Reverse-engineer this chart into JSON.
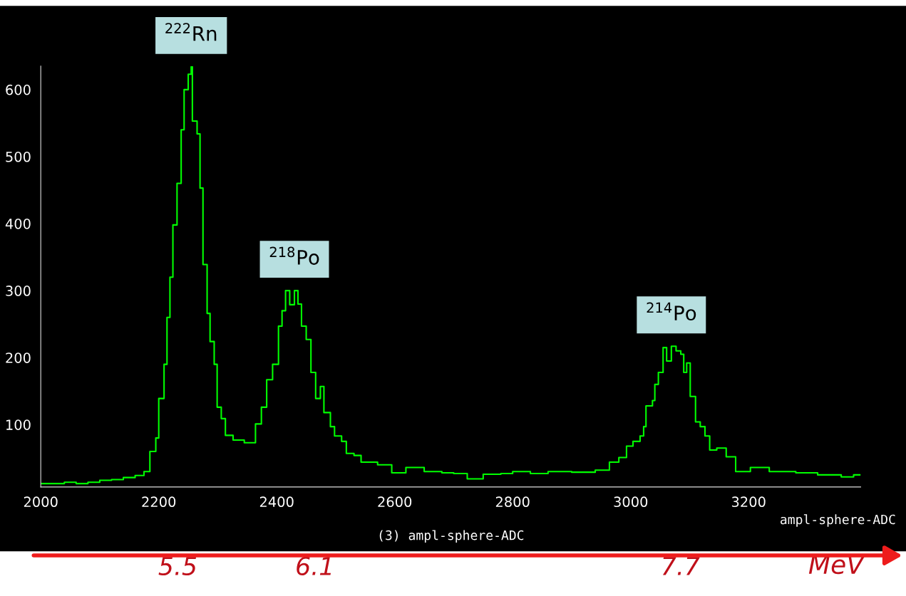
{
  "chart_data": {
    "type": "step",
    "title": "(3) ampl-sphere-ADC",
    "xlabel": "ampl-sphere-ADC",
    "x2label": "MeV",
    "x": [
      2000,
      2020,
      2040,
      2060,
      2080,
      2100,
      2120,
      2140,
      2160,
      2175,
      2185,
      2195,
      2200,
      2209,
      2214,
      2219,
      2224,
      2231,
      2238,
      2243,
      2250,
      2255,
      2257,
      2265,
      2270,
      2275,
      2282,
      2287,
      2294,
      2299,
      2306,
      2313,
      2326,
      2345,
      2360,
      2364,
      2374,
      2383,
      2393,
      2403,
      2409,
      2415,
      2422,
      2430,
      2436,
      2442,
      2450,
      2458,
      2466,
      2474,
      2480,
      2491,
      2498,
      2510,
      2518,
      2531,
      2543,
      2571,
      2595,
      2619,
      2650,
      2680,
      2700,
      2723,
      2750,
      2780,
      2800,
      2830,
      2860,
      2900,
      2940,
      2964,
      2980,
      2993,
      3004,
      3016,
      3022,
      3026,
      3037,
      3041,
      3047,
      3055,
      3061,
      3069,
      3077,
      3085,
      3090,
      3095,
      3101,
      3110,
      3118,
      3126,
      3134,
      3146,
      3162,
      3178,
      3203,
      3235,
      3280,
      3317,
      3357,
      3378,
      3389
    ],
    "series": [
      {
        "color": "#00ff00",
        "values": [
          12,
          12,
          14,
          12,
          14,
          17,
          18,
          21,
          24,
          30,
          60,
          80,
          139,
          190,
          260,
          320,
          398,
          460,
          540,
          600,
          623,
          634,
          553,
          534,
          453,
          339,
          266,
          224,
          190,
          126,
          109,
          84,
          77,
          73,
          73,
          101,
          126,
          167,
          190,
          247,
          270,
          300,
          279,
          300,
          280,
          247,
          227,
          178,
          139,
          157,
          118,
          97,
          83,
          75,
          57,
          54,
          44,
          40,
          28,
          36,
          30,
          28,
          27,
          19,
          26,
          27,
          30,
          27,
          30,
          29,
          32,
          44,
          51,
          68,
          75,
          83,
          97,
          128,
          136,
          160,
          178,
          215,
          195,
          217,
          210,
          205,
          178,
          192,
          142,
          104,
          97,
          83,
          62,
          65,
          52,
          30,
          36,
          30,
          28,
          25,
          22,
          25,
          25
        ]
      }
    ],
    "xlim": [
      2000,
      3390
    ],
    "xticks": [
      2000,
      2200,
      2400,
      2600,
      2800,
      3000,
      3200
    ],
    "ylim": [
      7,
      635
    ],
    "yticks": [
      100,
      200,
      300,
      400,
      500,
      600
    ],
    "x2lim": [
      4.9,
      8.49
    ],
    "x2ticks": [
      5.5,
      6.1,
      7.7
    ],
    "annotations": [
      {
        "text": "$^{222}$Rn",
        "x": 2255,
        "y": 634
      },
      {
        "text": "$^{218}$Po",
        "x": 2430,
        "y": 300
      },
      {
        "text": "$^{214}$Po",
        "x": 3069,
        "y": 217
      }
    ],
    "grid": false,
    "legend": false
  }
}
